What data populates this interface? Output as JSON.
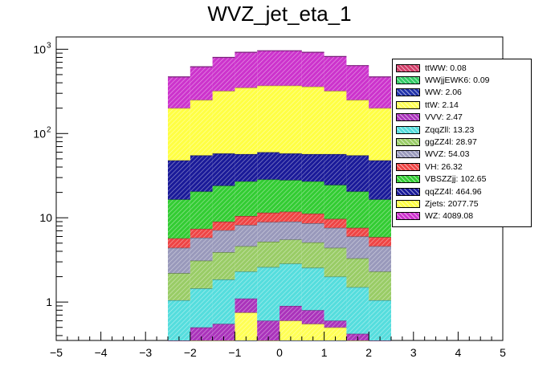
{
  "chart_data": {
    "type": "stacked-histogram",
    "title": "WVZ_jet_eta_1",
    "xlabel": "",
    "ylabel": "",
    "xlim": [
      -5,
      5
    ],
    "ylim": [
      0.35,
      1400
    ],
    "yscale": "log",
    "x_ticks": [
      "−5",
      "−4",
      "−3",
      "−2",
      "−1",
      "0",
      "1",
      "2",
      "3",
      "4",
      "5"
    ],
    "y_ticks": [
      {
        "value": 1,
        "label": "1"
      },
      {
        "value": 10,
        "label": "10"
      },
      {
        "value": 100,
        "label": "10",
        "sup": "2"
      },
      {
        "value": 1000,
        "label": "10",
        "sup": "3"
      }
    ],
    "bin_edges": [
      -2.5,
      -2.0,
      -1.5,
      -1.0,
      -0.5,
      0.0,
      0.5,
      1.0,
      1.5,
      2.0,
      2.5
    ],
    "stack_order": "bottom-to-top",
    "series": [
      {
        "name": "ttWW: 0.08",
        "color": "#d33f6a",
        "cumulative": [
          0.02,
          0.02,
          0.02,
          0.08,
          0.02,
          0.02,
          0.02,
          0.02,
          0.02,
          0.02
        ]
      },
      {
        "name": "WWjjEWK6: 0.09",
        "color": "#33cc66",
        "cumulative": [
          0.03,
          0.03,
          0.03,
          0.1,
          0.03,
          0.03,
          0.03,
          0.03,
          0.03,
          0.03
        ]
      },
      {
        "name": "WW: 2.06",
        "color": "#2233aa",
        "cumulative": [
          0.05,
          0.05,
          0.05,
          0.35,
          0.05,
          0.05,
          0.3,
          0.05,
          0.05,
          0.05
        ]
      },
      {
        "name": "ttW: 2.14",
        "color": "#ffff55",
        "cumulative": [
          0.05,
          0.05,
          0.05,
          0.75,
          0.05,
          0.6,
          0.55,
          0.5,
          0.05,
          0.05
        ]
      },
      {
        "name": "VVV: 2.47",
        "color": "#aa33bb",
        "cumulative": [
          0.05,
          0.5,
          0.55,
          1.1,
          0.6,
          0.9,
          0.8,
          0.6,
          0.42,
          0.05
        ]
      },
      {
        "name": "ZqqZll: 13.23",
        "color": "#55dddd",
        "cumulative": [
          1.05,
          1.45,
          1.85,
          2.3,
          2.6,
          2.85,
          2.55,
          2.0,
          1.5,
          1.05
        ]
      },
      {
        "name": "ggZZ4l: 28.97",
        "color": "#99cc66",
        "cumulative": [
          2.2,
          3.1,
          3.9,
          4.6,
          5.2,
          5.5,
          5.1,
          4.4,
          3.3,
          2.3
        ]
      },
      {
        "name": "WVZ: 54.03",
        "color": "#9999bb",
        "cumulative": [
          4.4,
          5.8,
          7.1,
          8.2,
          8.9,
          9.0,
          8.6,
          7.6,
          6.0,
          4.6
        ]
      },
      {
        "name": "VH: 26.32",
        "color": "#ee4444",
        "cumulative": [
          5.7,
          7.4,
          9.0,
          10.5,
          11.5,
          11.8,
          11.2,
          9.7,
          7.6,
          5.9
        ]
      },
      {
        "name": "VBSZZjj: 102.65",
        "color": "#33cc33",
        "cumulative": [
          16.5,
          20.5,
          24.0,
          27.0,
          28.5,
          28.0,
          27.0,
          24.5,
          20.5,
          16.5
        ]
      },
      {
        "name": "qqZZ4l: 464.96",
        "color": "#1a1a99",
        "cumulative": [
          48,
          55,
          58,
          57,
          60,
          58,
          57,
          57,
          55,
          48
        ]
      },
      {
        "name": "Zjets: 2077.75",
        "color": "#ffff44",
        "cumulative": [
          200,
          250,
          320,
          350,
          370,
          370,
          360,
          320,
          250,
          200
        ]
      },
      {
        "name": "WZ: 4089.08",
        "color": "#cc33cc",
        "cumulative": [
          470,
          620,
          800,
          920,
          960,
          960,
          920,
          820,
          640,
          470
        ]
      }
    ],
    "legend_position": "top-right"
  }
}
